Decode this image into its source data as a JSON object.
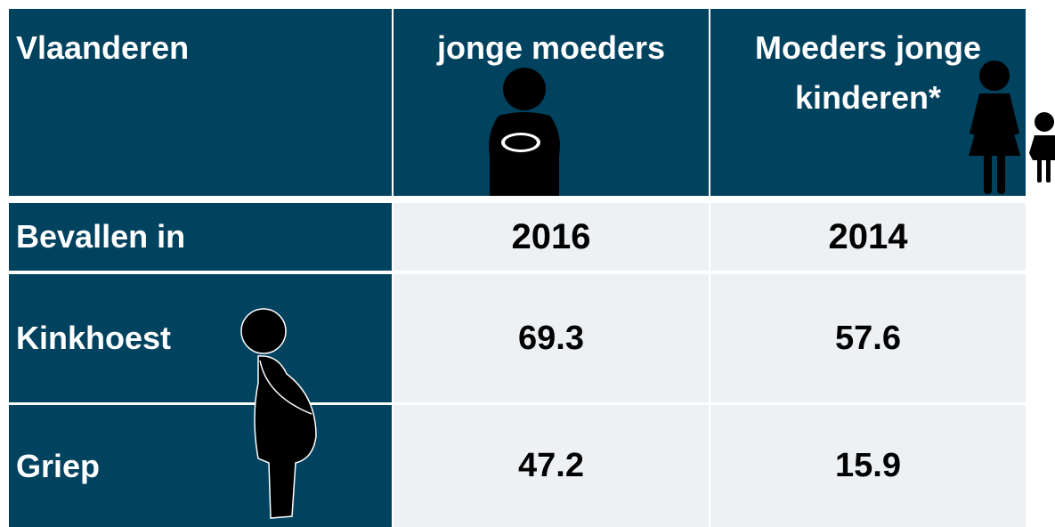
{
  "table": {
    "header": [
      "Vlaanderen",
      "jonge moeders",
      "Moeders jonge kinderen*"
    ],
    "rows": [
      [
        "Bevallen in",
        "2016",
        "2014"
      ],
      [
        "Kinkhoest",
        "69.3",
        "57.6"
      ],
      [
        "Griep",
        "47.2",
        "15.9"
      ]
    ]
  }
}
